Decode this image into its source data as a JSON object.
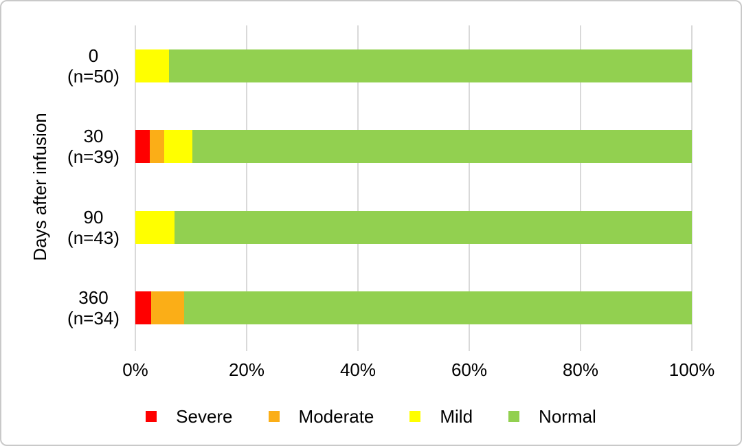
{
  "figure": {
    "background": "#ffffff",
    "border_color": "#c9c9c9",
    "text_color": "#000000"
  },
  "chart_data": {
    "type": "bar",
    "variant": "horizontal-stacked-100-percent",
    "title": "",
    "xlabel": "",
    "ylabel": "Days after infusion",
    "categories": [
      {
        "line1": "0",
        "line2": "(n=50)"
      },
      {
        "line1": "30",
        "line2": "(n=39)"
      },
      {
        "line1": "90",
        "line2": "(n=43)"
      },
      {
        "line1": "360",
        "line2": "(n=34)"
      }
    ],
    "series": [
      {
        "name": "Severe",
        "color": "#ff0000",
        "values": [
          0,
          2.6,
          0,
          2.9
        ]
      },
      {
        "name": "Moderate",
        "color": "#fbae17",
        "values": [
          0,
          2.6,
          0,
          5.9
        ]
      },
      {
        "name": "Mild",
        "color": "#ffff00",
        "values": [
          6.0,
          5.1,
          7.0,
          0
        ]
      },
      {
        "name": "Normal",
        "color": "#92d050",
        "values": [
          94.0,
          89.7,
          93.0,
          91.2
        ]
      }
    ],
    "x_ticks": [
      "0%",
      "20%",
      "40%",
      "60%",
      "80%",
      "100%"
    ],
    "xlim": [
      0,
      100
    ],
    "grid": "vertical",
    "gridline_color": "#d9d9d9",
    "legend_position": "bottom"
  }
}
